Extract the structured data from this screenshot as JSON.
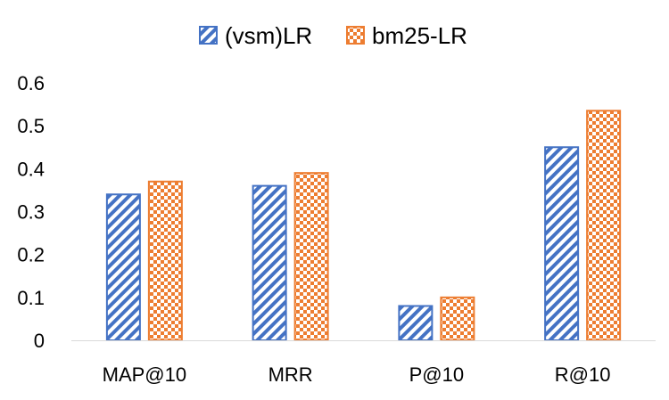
{
  "chart_data": {
    "type": "bar",
    "categories": [
      "MAP@10",
      "MRR",
      "P@10",
      "R@10"
    ],
    "series": [
      {
        "name": "(vsm)LR",
        "values": [
          0.34,
          0.36,
          0.08,
          0.45
        ],
        "color": "#4472C4",
        "pattern": "diagonal-stripes"
      },
      {
        "name": "bm25-LR",
        "values": [
          0.37,
          0.39,
          0.1,
          0.535
        ],
        "color": "#ED7D31",
        "pattern": "checkerboard"
      }
    ],
    "title": "",
    "xlabel": "",
    "ylabel": "",
    "ylim": [
      0,
      0.6
    ],
    "yticks": [
      0,
      0.1,
      0.2,
      0.3,
      0.4,
      0.5,
      0.6
    ],
    "ytick_labels": [
      "0",
      "0.1",
      "0.2",
      "0.3",
      "0.4",
      "0.5",
      "0.6"
    ],
    "grid": false,
    "legend": "top-center"
  }
}
